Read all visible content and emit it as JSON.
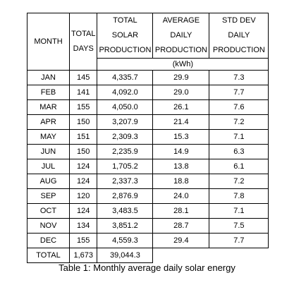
{
  "table": {
    "headers": {
      "month": "MONTH",
      "days": [
        "TOTAL",
        "DAYS"
      ],
      "total_production": [
        "TOTAL",
        "SOLAR",
        "PRODUCTION"
      ],
      "avg_daily": [
        "AVERAGE",
        "DAILY",
        "PRODUCTION"
      ],
      "std_dev": [
        "STD DEV",
        "DAILY",
        "PRODUCTION"
      ]
    },
    "unit": "(kWh)",
    "rows": [
      {
        "month": "JAN",
        "days": "145",
        "total": "4,335.7",
        "avg": "29.9",
        "std": "7.3"
      },
      {
        "month": "FEB",
        "days": "141",
        "total": "4,092.0",
        "avg": "29.0",
        "std": "7.7"
      },
      {
        "month": "MAR",
        "days": "155",
        "total": "4,050.0",
        "avg": "26.1",
        "std": "7.6"
      },
      {
        "month": "APR",
        "days": "150",
        "total": "3,207.9",
        "avg": "21.4",
        "std": "7.2"
      },
      {
        "month": "MAY",
        "days": "151",
        "total": "2,309.3",
        "avg": "15.3",
        "std": "7.1"
      },
      {
        "month": "JUN",
        "days": "150",
        "total": "2,235.9",
        "avg": "14.9",
        "std": "6.3"
      },
      {
        "month": "JUL",
        "days": "124",
        "total": "1,705.2",
        "avg": "13.8",
        "std": "6.1"
      },
      {
        "month": "AUG",
        "days": "124",
        "total": "2,337.3",
        "avg": "18.8",
        "std": "7.2"
      },
      {
        "month": "SEP",
        "days": "120",
        "total": "2,876.9",
        "avg": "24.0",
        "std": "7.8"
      },
      {
        "month": "OCT",
        "days": "124",
        "total": "3,483.5",
        "avg": "28.1",
        "std": "7.1"
      },
      {
        "month": "NOV",
        "days": "134",
        "total": "3,851.2",
        "avg": "28.7",
        "std": "7.5"
      },
      {
        "month": "DEC",
        "days": "155",
        "total": "4,559.3",
        "avg": "29.4",
        "std": "7.7"
      }
    ],
    "total_row": {
      "label": "TOTAL",
      "days": "1,673",
      "total": "39,044.3"
    }
  },
  "caption": "Table 1: Monthly average daily solar energy"
}
